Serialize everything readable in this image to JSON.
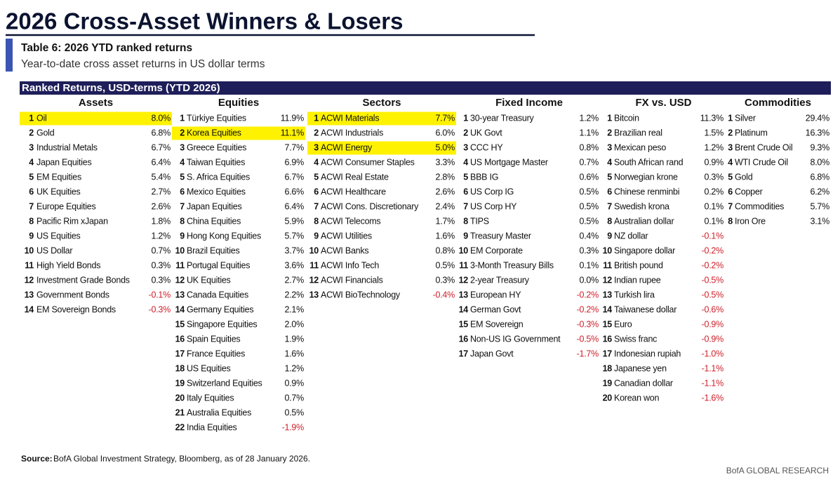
{
  "header": {
    "title": "2026 Cross-Asset Winners & Losers",
    "table_label": "Table 6: 2026 YTD ranked returns",
    "subtitle": "Year-to-date cross asset returns in US dollar terms"
  },
  "table": {
    "banner": "Ranked Returns, USD-terms (YTD 2026)",
    "columns": [
      {
        "heading": "Assets",
        "highlight": [
          0
        ],
        "rows": [
          [
            1,
            "Oil",
            "8.0%"
          ],
          [
            2,
            "Gold",
            "6.8%"
          ],
          [
            3,
            "Industrial Metals",
            "6.7%"
          ],
          [
            4,
            "Japan Equities",
            "6.4%"
          ],
          [
            5,
            "EM Equities",
            "5.4%"
          ],
          [
            6,
            "UK Equities",
            "2.7%"
          ],
          [
            7,
            "Europe Equities",
            "2.6%"
          ],
          [
            8,
            "Pacific Rim xJapan",
            "1.8%"
          ],
          [
            9,
            "US Equities",
            "1.2%"
          ],
          [
            10,
            "US Dollar",
            "0.7%"
          ],
          [
            11,
            "High Yield Bonds",
            "0.3%"
          ],
          [
            12,
            "Investment Grade Bonds",
            "0.3%"
          ],
          [
            13,
            "Government Bonds",
            "-0.1%"
          ],
          [
            14,
            "EM Sovereign Bonds",
            "-0.3%"
          ]
        ]
      },
      {
        "heading": "Equities",
        "highlight": [
          1
        ],
        "rows": [
          [
            1,
            "Türkiye Equities",
            "11.9%"
          ],
          [
            2,
            "Korea Equities",
            "11.1%"
          ],
          [
            3,
            "Greece Equities",
            "7.7%"
          ],
          [
            4,
            "Taiwan Equities",
            "6.9%"
          ],
          [
            5,
            "S. Africa Equities",
            "6.7%"
          ],
          [
            6,
            "Mexico Equities",
            "6.6%"
          ],
          [
            7,
            "Japan Equities",
            "6.4%"
          ],
          [
            8,
            "China Equities",
            "5.9%"
          ],
          [
            9,
            "Hong Kong Equities",
            "5.7%"
          ],
          [
            10,
            "Brazil Equities",
            "3.7%"
          ],
          [
            11,
            "Portugal Equities",
            "3.6%"
          ],
          [
            12,
            "UK Equities",
            "2.7%"
          ],
          [
            13,
            "Canada Equities",
            "2.2%"
          ],
          [
            14,
            "Germany Equities",
            "2.1%"
          ],
          [
            15,
            "Singapore Equities",
            "2.0%"
          ],
          [
            16,
            "Spain Equities",
            "1.9%"
          ],
          [
            17,
            "France Equities",
            "1.6%"
          ],
          [
            18,
            "US Equities",
            "1.2%"
          ],
          [
            19,
            "Switzerland Equities",
            "0.9%"
          ],
          [
            20,
            "Italy Equities",
            "0.7%"
          ],
          [
            21,
            "Australia Equities",
            "0.5%"
          ],
          [
            22,
            "India Equities",
            "-1.9%"
          ]
        ]
      },
      {
        "heading": "Sectors",
        "highlight": [
          0,
          2
        ],
        "rows": [
          [
            1,
            "ACWI Materials",
            "7.7%"
          ],
          [
            2,
            "ACWI Industrials",
            "6.0%"
          ],
          [
            3,
            "ACWI Energy",
            "5.0%"
          ],
          [
            4,
            "ACWI Consumer Staples",
            "3.3%"
          ],
          [
            5,
            "ACWI Real Estate",
            "2.8%"
          ],
          [
            6,
            "ACWI Healthcare",
            "2.6%"
          ],
          [
            7,
            "ACWI Cons. Discretionary",
            "2.4%"
          ],
          [
            8,
            "ACWI Telecoms",
            "1.7%"
          ],
          [
            9,
            "ACWI Utilities",
            "1.6%"
          ],
          [
            10,
            "ACWI Banks",
            "0.8%"
          ],
          [
            11,
            "ACWI Info Tech",
            "0.5%"
          ],
          [
            12,
            "ACWI Financials",
            "0.3%"
          ],
          [
            13,
            "ACWI BioTechnology",
            "-0.4%"
          ]
        ]
      },
      {
        "heading": "Fixed Income",
        "highlight": [],
        "rows": [
          [
            1,
            "30-year Treasury",
            "1.2%"
          ],
          [
            2,
            "UK Govt",
            "1.1%"
          ],
          [
            3,
            "CCC HY",
            "0.8%"
          ],
          [
            4,
            "US Mortgage Master",
            "0.7%"
          ],
          [
            5,
            "BBB IG",
            "0.6%"
          ],
          [
            6,
            "US Corp IG",
            "0.5%"
          ],
          [
            7,
            "US Corp HY",
            "0.5%"
          ],
          [
            8,
            "TIPS",
            "0.5%"
          ],
          [
            9,
            "Treasury Master",
            "0.4%"
          ],
          [
            10,
            "EM Corporate",
            "0.3%"
          ],
          [
            11,
            "3-Month Treasury Bills",
            "0.1%"
          ],
          [
            12,
            "2-year Treasury",
            "0.0%"
          ],
          [
            13,
            "European HY",
            "-0.2%"
          ],
          [
            14,
            "German Govt",
            "-0.2%"
          ],
          [
            15,
            "EM Sovereign",
            "-0.3%"
          ],
          [
            16,
            "Non-US IG Government",
            "-0.5%"
          ],
          [
            17,
            "Japan Govt",
            "-1.7%"
          ]
        ]
      },
      {
        "heading": "FX vs. USD",
        "highlight": [],
        "rows": [
          [
            1,
            "Bitcoin",
            "11.3%"
          ],
          [
            2,
            "Brazilian real",
            "1.5%"
          ],
          [
            3,
            "Mexican peso",
            "1.2%"
          ],
          [
            4,
            "South African rand",
            "0.9%"
          ],
          [
            5,
            "Norwegian krone",
            "0.3%"
          ],
          [
            6,
            "Chinese renminbi",
            "0.2%"
          ],
          [
            7,
            "Swedish krona",
            "0.1%"
          ],
          [
            8,
            "Australian dollar",
            "0.1%"
          ],
          [
            9,
            "NZ dollar",
            "-0.1%"
          ],
          [
            10,
            "Singapore dollar",
            "-0.2%"
          ],
          [
            11,
            "British pound",
            "-0.2%"
          ],
          [
            12,
            "Indian rupee",
            "-0.5%"
          ],
          [
            13,
            "Turkish lira",
            "-0.5%"
          ],
          [
            14,
            "Taiwanese dollar",
            "-0.6%"
          ],
          [
            15,
            "Euro",
            "-0.9%"
          ],
          [
            16,
            "Swiss franc",
            "-0.9%"
          ],
          [
            17,
            "Indonesian rupiah",
            "-1.0%"
          ],
          [
            18,
            "Japanese yen",
            "-1.1%"
          ],
          [
            19,
            "Canadian dollar",
            "-1.1%"
          ],
          [
            20,
            "Korean won",
            "-1.6%"
          ]
        ]
      },
      {
        "heading": "Commodities",
        "highlight": [],
        "rows": [
          [
            1,
            "Silver",
            "29.4%"
          ],
          [
            2,
            "Platinum",
            "16.3%"
          ],
          [
            3,
            "Brent Crude Oil",
            "9.3%"
          ],
          [
            4,
            "WTI Crude Oil",
            "8.0%"
          ],
          [
            5,
            "Gold",
            "6.8%"
          ],
          [
            6,
            "Copper",
            "6.2%"
          ],
          [
            7,
            "Commodities",
            "5.7%"
          ],
          [
            8,
            "Iron Ore",
            "3.1%"
          ]
        ]
      }
    ]
  },
  "footer": {
    "source_label": "Source:",
    "source_text": "BofA Global Investment Strategy, Bloomberg, as of 28 January 2026.",
    "brand": "BofA GLOBAL RESEARCH"
  }
}
